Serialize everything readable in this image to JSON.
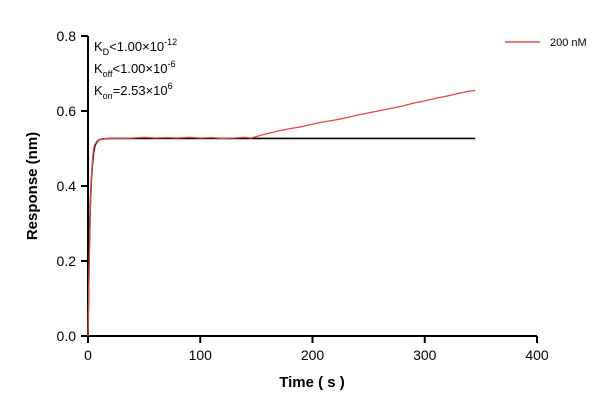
{
  "chart_data": {
    "type": "line",
    "title": "",
    "xlabel": "Time ( s )",
    "ylabel": "Response (nm)",
    "xlim": [
      0,
      400
    ],
    "ylim": [
      0,
      0.8
    ],
    "x_ticks": [
      0,
      100,
      200,
      300,
      400
    ],
    "x_tick_labels": [
      "0",
      "100",
      "200",
      "300",
      "400"
    ],
    "y_ticks": [
      0.0,
      0.2,
      0.4,
      0.6,
      0.8
    ],
    "y_tick_labels": [
      "0.0",
      "0.2",
      "0.4",
      "0.6",
      "0.8"
    ],
    "grid": false,
    "legend_position": "top-right",
    "annotations": [
      {
        "main": "K",
        "sub": "D",
        "rest": "<1.00×10",
        "sup": "-12"
      },
      {
        "main": "K",
        "sub": "off",
        "rest": "<1.00×10",
        "sup": "-6"
      },
      {
        "main": "K",
        "sub": "on",
        "rest": "=2.53×10",
        "sup": "6"
      }
    ],
    "series": [
      {
        "name": "200 nM",
        "color": "#e8474a",
        "x": [
          0,
          1,
          2,
          3,
          4,
          5,
          6,
          8,
          10,
          12,
          15,
          20,
          30,
          40,
          50,
          60,
          70,
          80,
          90,
          100,
          110,
          120,
          130,
          140,
          145,
          150,
          160,
          170,
          180,
          190,
          200,
          210,
          220,
          230,
          240,
          250,
          260,
          270,
          280,
          290,
          300,
          310,
          320,
          330,
          340,
          345
        ],
        "y": [
          0.0,
          0.18,
          0.33,
          0.42,
          0.47,
          0.5,
          0.51,
          0.52,
          0.523,
          0.525,
          0.526,
          0.527,
          0.527,
          0.528,
          0.53,
          0.528,
          0.529,
          0.528,
          0.53,
          0.528,
          0.529,
          0.527,
          0.528,
          0.53,
          0.528,
          0.532,
          0.54,
          0.547,
          0.553,
          0.558,
          0.565,
          0.571,
          0.576,
          0.582,
          0.589,
          0.595,
          0.601,
          0.607,
          0.613,
          0.621,
          0.627,
          0.634,
          0.64,
          0.647,
          0.653,
          0.655
        ]
      },
      {
        "name": "",
        "color": "#000000",
        "x": [
          0,
          1,
          2,
          3,
          4,
          5,
          6,
          7,
          8,
          10,
          12,
          15,
          20,
          345
        ],
        "y": [
          0.0,
          0.21,
          0.34,
          0.42,
          0.46,
          0.49,
          0.505,
          0.513,
          0.518,
          0.523,
          0.525,
          0.526,
          0.527,
          0.527
        ]
      }
    ]
  }
}
